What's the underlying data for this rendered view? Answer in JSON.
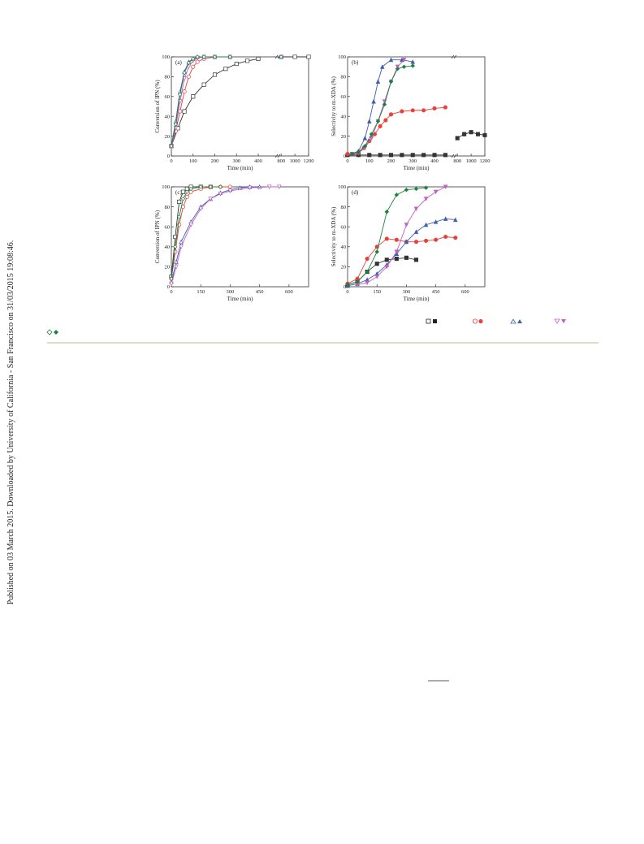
{
  "sidebar": "Published on 03 March 2015. Downloaded by University of California - San Francisco on 31/03/2015 19:08:46.",
  "chart_data": [
    {
      "type": "scatter",
      "panel_label": "(a)",
      "x_label": "Time (min)",
      "y_label": "Conversion of IPN (%)",
      "filled": false,
      "xlim": [
        0,
        1200
      ],
      "xsegments": [
        [
          0,
          480
        ],
        [
          780,
          1200
        ]
      ],
      "xticks": [
        0,
        100,
        200,
        300,
        400,
        800,
        1000,
        1200
      ],
      "ylim": [
        0,
        100
      ],
      "yticks": [
        0,
        20,
        40,
        60,
        80,
        100
      ],
      "series": [
        {
          "color": "#333333",
          "marker": "square",
          "x": [
            0,
            30,
            60,
            100,
            150,
            200,
            250,
            300,
            350,
            400,
            800,
            1000,
            1200
          ],
          "values": [
            10,
            28,
            45,
            60,
            72,
            82,
            88,
            93,
            96,
            98,
            100,
            100,
            100
          ]
        },
        {
          "color": "#e8403a",
          "marker": "circle",
          "x": [
            0,
            20,
            40,
            60,
            80,
            100,
            120,
            150,
            200,
            270,
            800
          ],
          "values": [
            10,
            25,
            45,
            65,
            80,
            90,
            95,
            98,
            100,
            100,
            100
          ]
        },
        {
          "color": "#3e5fb0",
          "marker": "up",
          "x": [
            0,
            20,
            40,
            60,
            80,
            100,
            120,
            150,
            200,
            270,
            800
          ],
          "values": [
            10,
            35,
            65,
            85,
            95,
            98,
            100,
            100,
            100,
            100,
            100
          ]
        },
        {
          "color": "#c060c0",
          "marker": "down",
          "x": [
            0,
            20,
            40,
            60,
            80,
            100,
            120,
            150,
            200,
            270,
            800
          ],
          "values": [
            8,
            28,
            55,
            78,
            90,
            96,
            99,
            100,
            100,
            100,
            100
          ]
        },
        {
          "color": "#1e8040",
          "marker": "diamond",
          "x": [
            0,
            20,
            40,
            60,
            80,
            100,
            120,
            150,
            200,
            270,
            800
          ],
          "values": [
            10,
            32,
            62,
            84,
            94,
            98,
            100,
            100,
            100,
            100,
            100
          ]
        }
      ]
    },
    {
      "type": "scatter",
      "panel_label": "(b)",
      "x_label": "Time (min)",
      "y_label": "Selectivity to m-XDA (%)",
      "filled": true,
      "xlim": [
        0,
        1200
      ],
      "xsegments": [
        [
          0,
          480
        ],
        [
          780,
          1200
        ]
      ],
      "xticks": [
        0,
        100,
        200,
        300,
        400,
        800,
        1000,
        1200
      ],
      "ylim": [
        0,
        100
      ],
      "yticks": [
        0,
        20,
        40,
        60,
        80,
        100
      ],
      "series": [
        {
          "color": "#333333",
          "marker": "square",
          "x": [
            0,
            50,
            100,
            150,
            200,
            250,
            300,
            350,
            400,
            450,
            800,
            900,
            1000,
            1100,
            1200
          ],
          "values": [
            1,
            1,
            1,
            1,
            1,
            1,
            1,
            1,
            1,
            1,
            18,
            22,
            24,
            22,
            21
          ]
        },
        {
          "color": "#e8403a",
          "marker": "circle",
          "x": [
            0,
            25,
            50,
            75,
            100,
            125,
            150,
            175,
            200,
            250,
            300,
            350,
            400,
            450
          ],
          "values": [
            2,
            2,
            3,
            8,
            15,
            22,
            30,
            36,
            42,
            45,
            46,
            46,
            48,
            49
          ]
        },
        {
          "color": "#3e5fb0",
          "marker": "up",
          "x": [
            20,
            50,
            80,
            100,
            120,
            140,
            160,
            200,
            250,
            300
          ],
          "values": [
            2,
            5,
            18,
            35,
            55,
            75,
            90,
            97,
            97,
            95
          ]
        },
        {
          "color": "#c060c0",
          "marker": "down",
          "x": [
            20,
            50,
            80,
            110,
            140,
            170,
            200,
            230,
            260
          ],
          "values": [
            2,
            3,
            8,
            18,
            35,
            55,
            75,
            90,
            97
          ]
        },
        {
          "color": "#1e8040",
          "marker": "diamond",
          "x": [
            20,
            50,
            80,
            110,
            140,
            170,
            200,
            230,
            260,
            300
          ],
          "values": [
            2,
            4,
            10,
            22,
            35,
            52,
            75,
            88,
            90,
            91
          ]
        }
      ]
    },
    {
      "type": "scatter",
      "panel_label": "(c)",
      "x_label": "Time (min)",
      "y_label": "Conversion of IPN (%)",
      "filled": false,
      "xlim": [
        0,
        700
      ],
      "xticks": [
        0,
        150,
        300,
        450,
        600
      ],
      "ylim": [
        0,
        100
      ],
      "yticks": [
        0,
        20,
        40,
        60,
        80,
        100
      ],
      "series": [
        {
          "color": "#333333",
          "marker": "square",
          "x": [
            0,
            20,
            40,
            60,
            80,
            100,
            150,
            200
          ],
          "values": [
            10,
            50,
            85,
            95,
            98,
            100,
            100,
            100
          ]
        },
        {
          "color": "#e8403a",
          "marker": "circle",
          "x": [
            0,
            20,
            40,
            60,
            80,
            100,
            150,
            200,
            250,
            300
          ],
          "values": [
            8,
            35,
            62,
            80,
            90,
            95,
            98,
            100,
            100,
            100
          ]
        },
        {
          "color": "#3e5fb0",
          "marker": "up",
          "x": [
            0,
            25,
            50,
            100,
            150,
            200,
            250,
            300,
            350,
            400,
            450
          ],
          "values": [
            5,
            25,
            45,
            65,
            80,
            88,
            94,
            97,
            99,
            100,
            100
          ]
        },
        {
          "color": "#c060c0",
          "marker": "down",
          "x": [
            0,
            25,
            50,
            100,
            150,
            200,
            250,
            300,
            400,
            500,
            550
          ],
          "values": [
            3,
            20,
            40,
            62,
            78,
            88,
            93,
            96,
            99,
            100,
            100
          ]
        },
        {
          "color": "#1e8040",
          "marker": "diamond",
          "x": [
            0,
            20,
            40,
            60,
            80,
            100,
            150,
            200,
            250
          ],
          "values": [
            8,
            40,
            70,
            88,
            95,
            98,
            100,
            100,
            100
          ]
        }
      ]
    },
    {
      "type": "scatter",
      "panel_label": "(d)",
      "x_label": "Time (min)",
      "y_label": "Selectivity to m-XDA (%)",
      "filled": true,
      "xlim": [
        0,
        700
      ],
      "xticks": [
        0,
        150,
        300,
        450,
        600
      ],
      "ylim": [
        0,
        100
      ],
      "yticks": [
        0,
        20,
        40,
        60,
        80,
        100
      ],
      "series": [
        {
          "color": "#333333",
          "marker": "square",
          "x": [
            0,
            50,
            100,
            150,
            200,
            250,
            300,
            350
          ],
          "values": [
            2,
            5,
            15,
            23,
            27,
            28,
            29,
            27
          ]
        },
        {
          "color": "#e8403a",
          "marker": "circle",
          "x": [
            0,
            50,
            100,
            150,
            200,
            250,
            300,
            350,
            400,
            450,
            500,
            550
          ],
          "values": [
            3,
            8,
            28,
            40,
            48,
            47,
            45,
            45,
            46,
            47,
            50,
            49
          ]
        },
        {
          "color": "#3e5fb0",
          "marker": "up",
          "x": [
            0,
            50,
            100,
            150,
            200,
            250,
            300,
            350,
            400,
            450,
            500,
            550
          ],
          "values": [
            1,
            3,
            7,
            13,
            22,
            33,
            45,
            55,
            62,
            65,
            68,
            67
          ]
        },
        {
          "color": "#c060c0",
          "marker": "down",
          "x": [
            50,
            100,
            150,
            200,
            250,
            300,
            350,
            400,
            450,
            500
          ],
          "values": [
            2,
            4,
            10,
            20,
            35,
            62,
            78,
            88,
            95,
            100
          ]
        },
        {
          "color": "#1e8040",
          "marker": "diamond",
          "x": [
            0,
            50,
            100,
            150,
            200,
            250,
            300,
            350,
            400
          ],
          "values": [
            2,
            5,
            15,
            35,
            75,
            92,
            97,
            98,
            99
          ]
        }
      ]
    }
  ]
}
